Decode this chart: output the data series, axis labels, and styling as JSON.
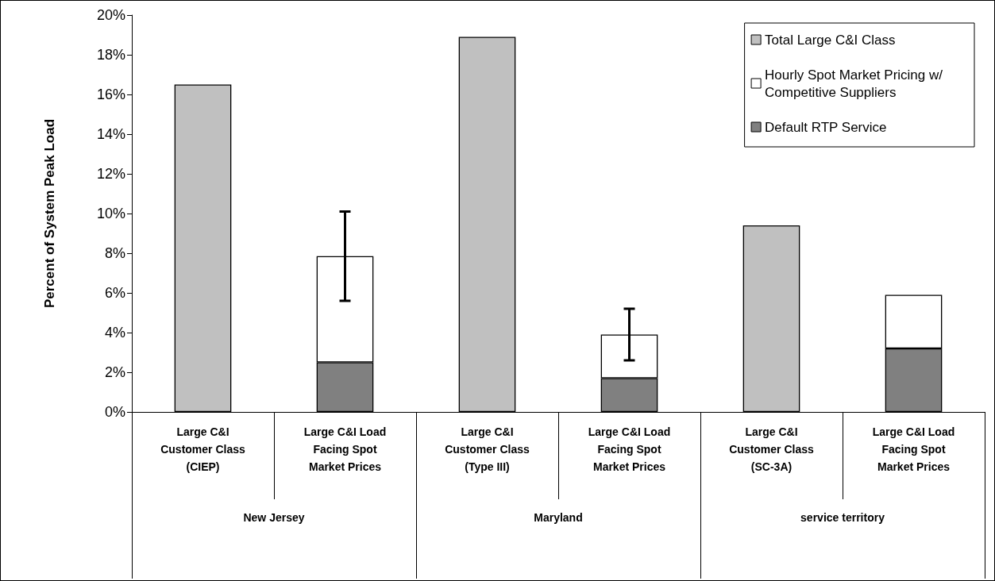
{
  "chart_data": {
    "type": "bar",
    "stacked": true,
    "ylabel": "Percent of System Peak Load",
    "categories": [
      "Large C&I\nCustomer Class\n(CIEP)",
      "Large C&I Load\nFacing Spot\nMarket Prices",
      "Large C&I\nCustomer Class\n(Type III)",
      "Large C&I Load\nFacing Spot\nMarket Prices",
      "Large C&I\nCustomer Class\n(SC-3A)",
      "Large C&I Load\nFacing Spot\nMarket Prices"
    ],
    "annotations": [
      "New Jersey",
      "Maryland",
      "service territory"
    ],
    "series": [
      {
        "name": "Total Large C&I Class",
        "color": "#c0c0c0",
        "values": [
          16.5,
          null,
          18.9,
          null,
          9.4,
          null
        ]
      },
      {
        "name": "Default RTP Service",
        "color": "#808080",
        "values": [
          null,
          2.5,
          null,
          1.7,
          null,
          3.2
        ]
      },
      {
        "name": "Hourly Spot Market Pricing w/\nCompetitive Suppliers",
        "color": "#ffffff",
        "values": [
          null,
          5.35,
          null,
          2.2,
          null,
          2.7
        ],
        "errors": [
          null,
          [
            5.6,
            10.1
          ],
          null,
          [
            2.6,
            5.2
          ],
          null,
          null
        ]
      }
    ],
    "ylim": [
      0,
      20
    ],
    "yticks": [
      {
        "value": 0,
        "label": "0%"
      },
      {
        "value": 2,
        "label": "2%"
      },
      {
        "value": 4,
        "label": "4%"
      },
      {
        "value": 6,
        "label": "6%"
      },
      {
        "value": 8,
        "label": "8%"
      },
      {
        "value": 10,
        "label": "10%"
      },
      {
        "value": 12,
        "label": "12%"
      },
      {
        "value": 14,
        "label": "14%"
      },
      {
        "value": 16,
        "label": "16%"
      },
      {
        "value": 18,
        "label": "18%"
      },
      {
        "value": 20,
        "label": "20%"
      }
    ],
    "grid": false,
    "legend": "top right"
  }
}
